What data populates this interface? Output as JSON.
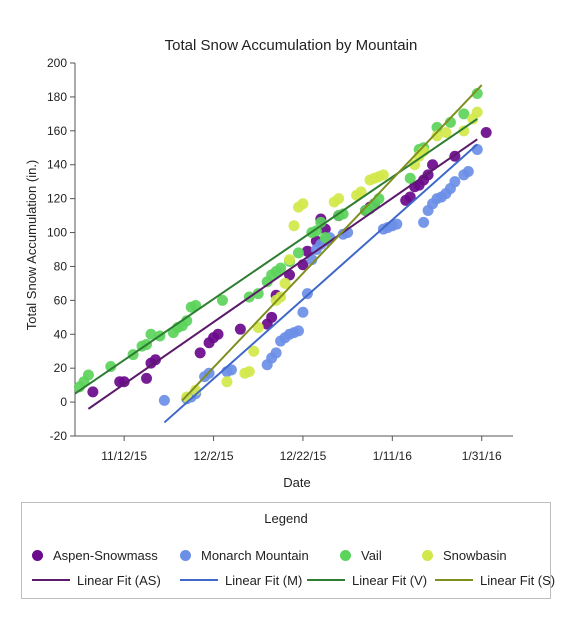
{
  "chart_data": {
    "type": "scatter",
    "title": "Total Snow Accumulation by Mountain",
    "xlabel": "Date",
    "ylabel": "Total Snow Accumulation (in.)",
    "xlim": [
      "2015-11-01",
      "2016-02-07"
    ],
    "ylim": [
      -20,
      200
    ],
    "x_ticks": [
      "2015-11-12",
      "2015-12-02",
      "2015-12-22",
      "2016-01-11",
      "2016-01-31"
    ],
    "x_tick_labels": [
      "11/12/15",
      "12/2/15",
      "12/22/15",
      "1/11/16",
      "1/31/16"
    ],
    "y_ticks": [
      -20,
      0,
      20,
      40,
      60,
      80,
      100,
      120,
      140,
      160,
      180,
      200
    ],
    "grid": false,
    "legend_title": "Legend",
    "legend_position": "bottom",
    "series": [
      {
        "name": "Aspen-Snowmass",
        "kind": "scatter",
        "color": "#6a0a8c",
        "points": [
          [
            "2015-11-05",
            6
          ],
          [
            "2015-11-11",
            12
          ],
          [
            "2015-11-12",
            12
          ],
          [
            "2015-11-17",
            14
          ],
          [
            "2015-11-18",
            23
          ],
          [
            "2015-11-19",
            25
          ],
          [
            "2015-11-29",
            29
          ],
          [
            "2015-12-01",
            35
          ],
          [
            "2015-12-02",
            38
          ],
          [
            "2015-12-03",
            40
          ],
          [
            "2015-12-08",
            43
          ],
          [
            "2015-12-14",
            46
          ],
          [
            "2015-12-15",
            50
          ],
          [
            "2015-12-16",
            63
          ],
          [
            "2015-12-19",
            75
          ],
          [
            "2015-12-22",
            81
          ],
          [
            "2015-12-23",
            89
          ],
          [
            "2015-12-25",
            95
          ],
          [
            "2015-12-26",
            108
          ],
          [
            "2015-12-27",
            102
          ],
          [
            "2015-12-30",
            110
          ],
          [
            "2016-01-05",
            113
          ],
          [
            "2016-01-06",
            115
          ],
          [
            "2016-01-07",
            117
          ],
          [
            "2016-01-14",
            119
          ],
          [
            "2016-01-15",
            121
          ],
          [
            "2016-01-16",
            127
          ],
          [
            "2016-01-17",
            128
          ],
          [
            "2016-01-18",
            131
          ],
          [
            "2016-01-19",
            134
          ],
          [
            "2016-01-20",
            140
          ],
          [
            "2016-01-25",
            145
          ],
          [
            "2016-02-01",
            159
          ]
        ]
      },
      {
        "name": "Monarch Mountain",
        "kind": "scatter",
        "color": "#6b8ee6",
        "points": [
          [
            "2015-11-21",
            1
          ],
          [
            "2015-11-26",
            2
          ],
          [
            "2015-11-27",
            3
          ],
          [
            "2015-11-28",
            5
          ],
          [
            "2015-11-30",
            15
          ],
          [
            "2015-12-01",
            17
          ],
          [
            "2015-12-05",
            18
          ],
          [
            "2015-12-06",
            19
          ],
          [
            "2015-12-14",
            22
          ],
          [
            "2015-12-15",
            26
          ],
          [
            "2015-12-16",
            29
          ],
          [
            "2015-12-17",
            36
          ],
          [
            "2015-12-18",
            38
          ],
          [
            "2015-12-19",
            40
          ],
          [
            "2015-12-20",
            41
          ],
          [
            "2015-12-21",
            42
          ],
          [
            "2015-12-22",
            53
          ],
          [
            "2015-12-23",
            64
          ],
          [
            "2015-12-24",
            84
          ],
          [
            "2015-12-25",
            90
          ],
          [
            "2015-12-26",
            93
          ],
          [
            "2015-12-27",
            95
          ],
          [
            "2015-12-28",
            97
          ],
          [
            "2015-12-31",
            99
          ],
          [
            "2016-01-01",
            100
          ],
          [
            "2016-01-09",
            102
          ],
          [
            "2016-01-10",
            103
          ],
          [
            "2016-01-11",
            104
          ],
          [
            "2016-01-12",
            105
          ],
          [
            "2016-01-18",
            106
          ],
          [
            "2016-01-19",
            113
          ],
          [
            "2016-01-20",
            117
          ],
          [
            "2016-01-21",
            120
          ],
          [
            "2016-01-22",
            121
          ],
          [
            "2016-01-23",
            123
          ],
          [
            "2016-01-24",
            126
          ],
          [
            "2016-01-25",
            130
          ],
          [
            "2016-01-27",
            134
          ],
          [
            "2016-01-28",
            136
          ],
          [
            "2016-01-30",
            149
          ]
        ]
      },
      {
        "name": "Vail",
        "kind": "scatter",
        "color": "#5bd45b",
        "points": [
          [
            "2015-11-02",
            9
          ],
          [
            "2015-11-03",
            12
          ],
          [
            "2015-11-04",
            16
          ],
          [
            "2015-11-09",
            21
          ],
          [
            "2015-11-14",
            28
          ],
          [
            "2015-11-16",
            33
          ],
          [
            "2015-11-17",
            34
          ],
          [
            "2015-11-18",
            40
          ],
          [
            "2015-11-20",
            39
          ],
          [
            "2015-11-23",
            41
          ],
          [
            "2015-11-24",
            44
          ],
          [
            "2015-11-25",
            45
          ],
          [
            "2015-11-26",
            48
          ],
          [
            "2015-11-27",
            56
          ],
          [
            "2015-11-28",
            57
          ],
          [
            "2015-12-04",
            60
          ],
          [
            "2015-12-10",
            62
          ],
          [
            "2015-12-12",
            64
          ],
          [
            "2015-12-14",
            71
          ],
          [
            "2015-12-15",
            75
          ],
          [
            "2015-12-16",
            77
          ],
          [
            "2015-12-17",
            79
          ],
          [
            "2015-12-19",
            83
          ],
          [
            "2015-12-21",
            88
          ],
          [
            "2015-12-24",
            100
          ],
          [
            "2015-12-25",
            101
          ],
          [
            "2015-12-26",
            106
          ],
          [
            "2015-12-27",
            97
          ],
          [
            "2015-12-30",
            110
          ],
          [
            "2015-12-31",
            111
          ],
          [
            "2016-01-05",
            113
          ],
          [
            "2016-01-06",
            114
          ],
          [
            "2016-01-07",
            117
          ],
          [
            "2016-01-08",
            120
          ],
          [
            "2016-01-15",
            132
          ],
          [
            "2016-01-17",
            149
          ],
          [
            "2016-01-18",
            150
          ],
          [
            "2016-01-21",
            162
          ],
          [
            "2016-01-24",
            165
          ],
          [
            "2016-01-27",
            170
          ],
          [
            "2016-01-30",
            182
          ]
        ]
      },
      {
        "name": "Snowbasin",
        "kind": "scatter",
        "color": "#d2e84a",
        "points": [
          [
            "2015-11-26",
            3
          ],
          [
            "2015-11-28",
            7
          ],
          [
            "2015-12-05",
            12
          ],
          [
            "2015-12-09",
            17
          ],
          [
            "2015-12-10",
            18
          ],
          [
            "2015-12-11",
            30
          ],
          [
            "2015-12-12",
            44
          ],
          [
            "2015-12-16",
            60
          ],
          [
            "2015-12-17",
            62
          ],
          [
            "2015-12-18",
            70
          ],
          [
            "2015-12-19",
            84
          ],
          [
            "2015-12-20",
            104
          ],
          [
            "2015-12-21",
            115
          ],
          [
            "2015-12-22",
            117
          ],
          [
            "2015-12-29",
            118
          ],
          [
            "2015-12-30",
            120
          ],
          [
            "2016-01-03",
            122
          ],
          [
            "2016-01-04",
            124
          ],
          [
            "2016-01-06",
            131
          ],
          [
            "2016-01-07",
            132
          ],
          [
            "2016-01-08",
            133
          ],
          [
            "2016-01-09",
            134
          ],
          [
            "2016-01-16",
            140
          ],
          [
            "2016-01-17",
            145
          ],
          [
            "2016-01-18",
            148
          ],
          [
            "2016-01-21",
            157
          ],
          [
            "2016-01-23",
            159
          ],
          [
            "2016-01-27",
            160
          ],
          [
            "2016-01-29",
            167
          ],
          [
            "2016-01-30",
            171
          ]
        ]
      },
      {
        "name": "Linear Fit (AS)",
        "kind": "line",
        "color": "#5c1a6b",
        "points": [
          [
            "2015-11-04",
            -4
          ],
          [
            "2016-01-30",
            155
          ]
        ]
      },
      {
        "name": "Linear Fit (M)",
        "kind": "line",
        "color": "#3f68c9",
        "points": [
          [
            "2015-11-21",
            -12
          ],
          [
            "2016-01-30",
            152
          ]
        ]
      },
      {
        "name": "Linear Fit (V)",
        "kind": "line",
        "color": "#2e7d32",
        "points": [
          [
            "2015-11-01",
            5
          ],
          [
            "2016-01-30",
            167
          ]
        ]
      },
      {
        "name": "Linear Fit (S)",
        "kind": "line",
        "color": "#7f8f1f",
        "points": [
          [
            "2015-11-25",
            1
          ],
          [
            "2016-01-31",
            187
          ]
        ]
      }
    ]
  }
}
